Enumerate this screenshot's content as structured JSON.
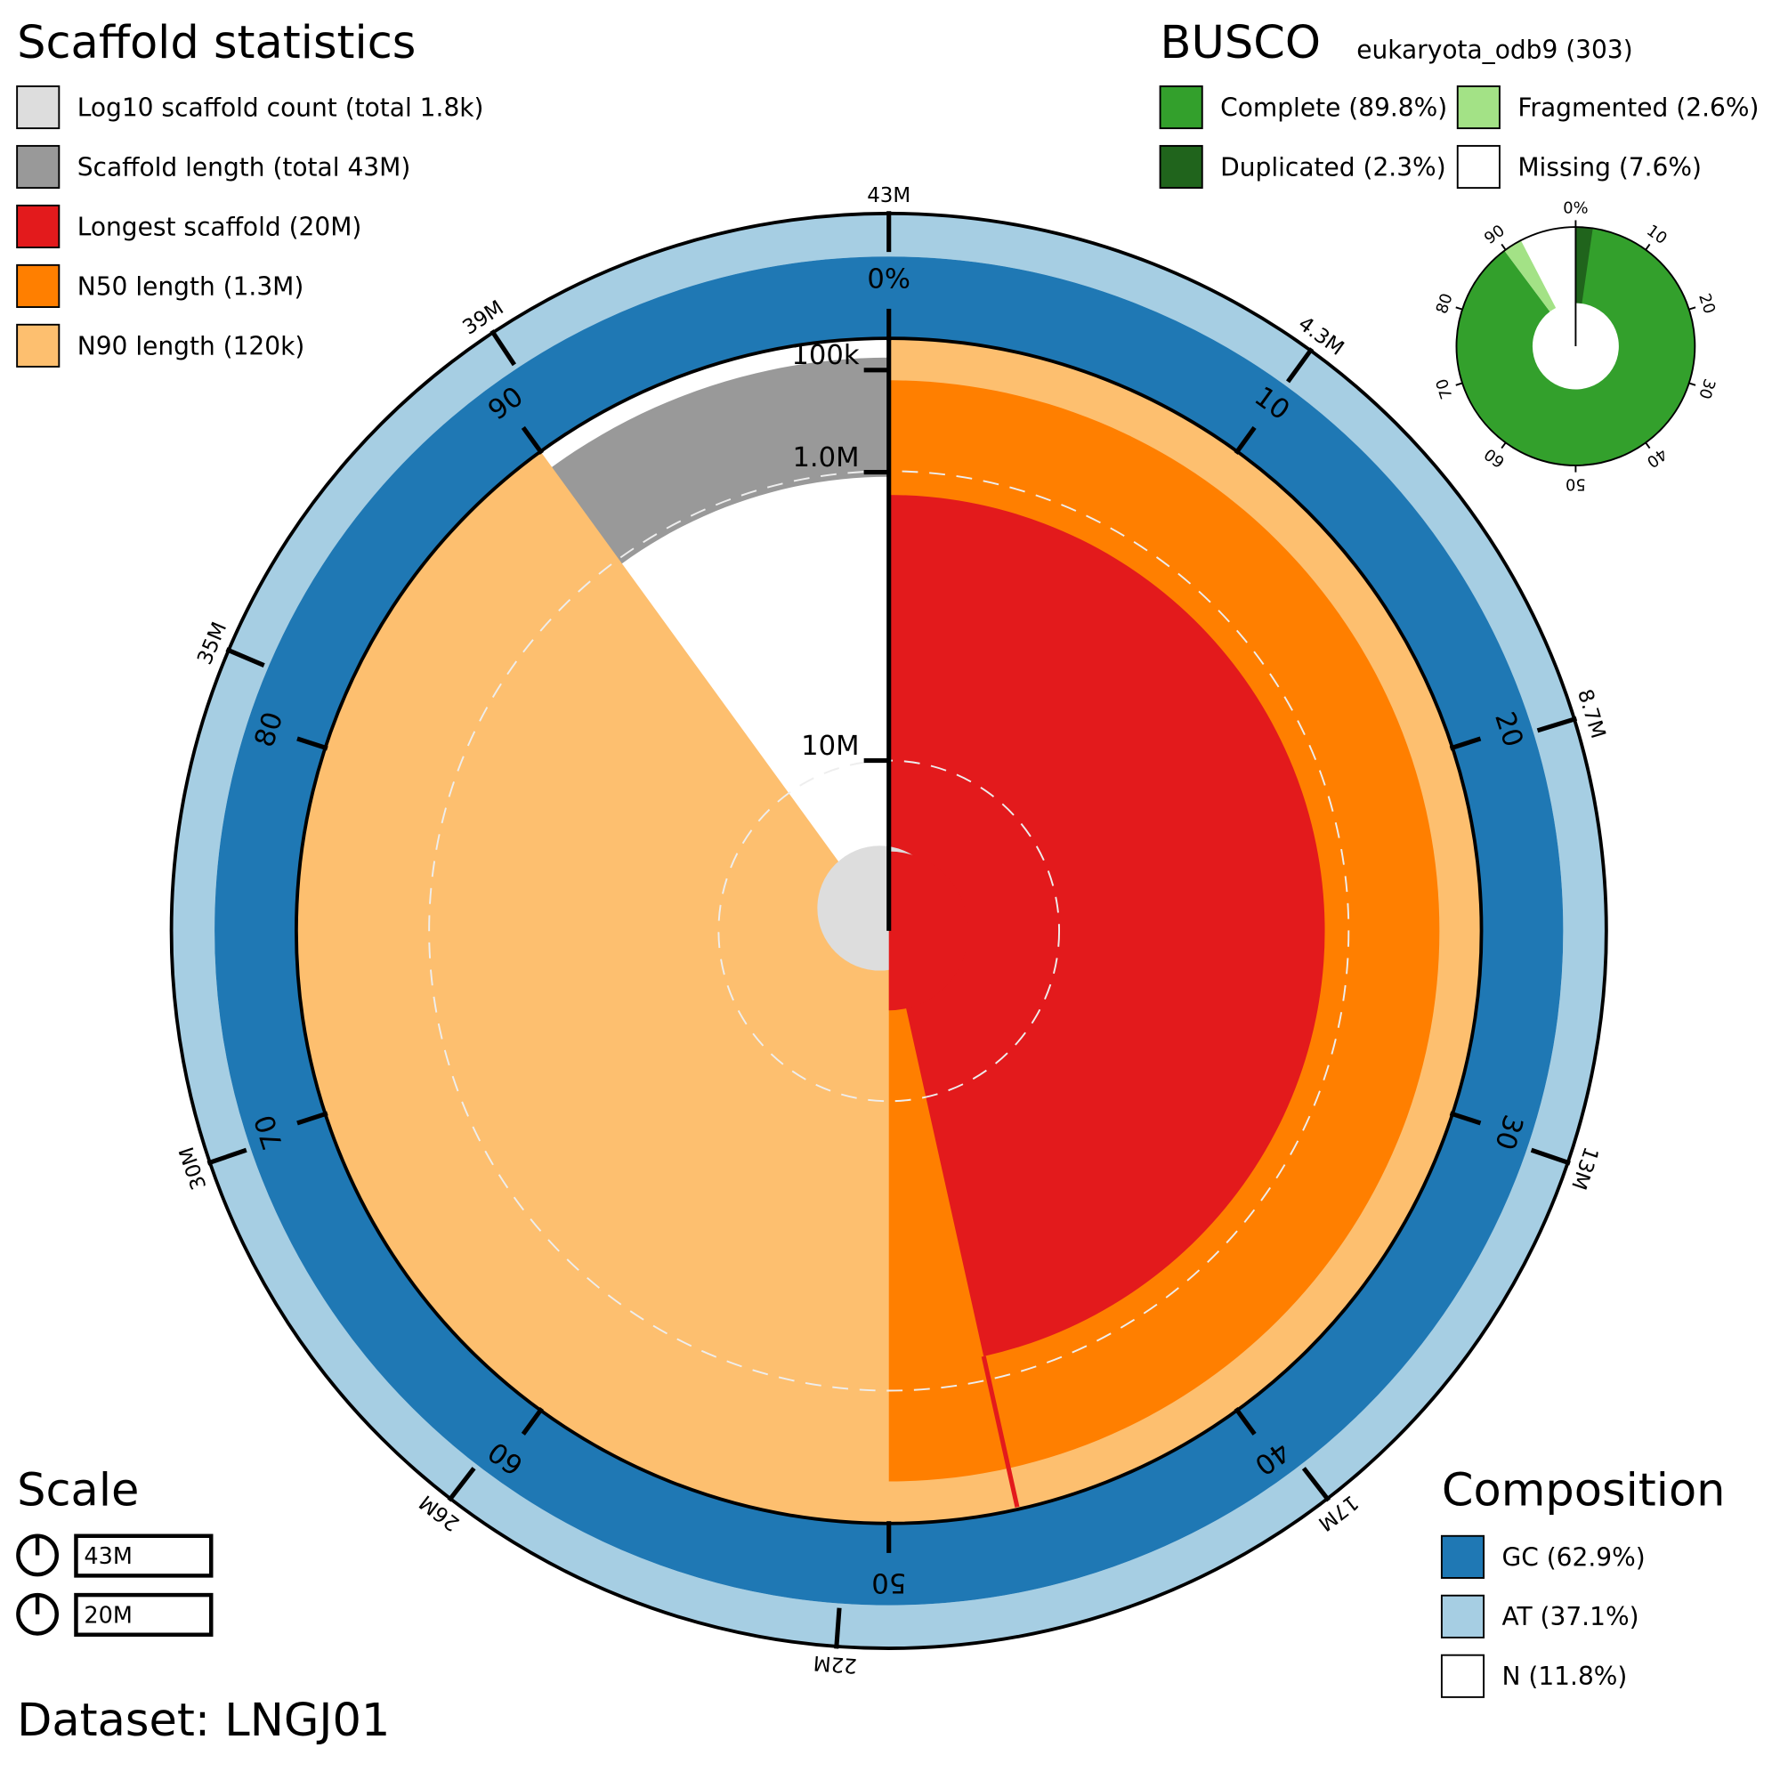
{
  "chart_data": {
    "type": "snail",
    "title": "Scaffold statistics",
    "legend": [
      {
        "label": "Log10 scaffold count (total 1.8k)",
        "color": "#dddddd"
      },
      {
        "label": "Scaffold length (total 43M)",
        "color": "#999999"
      },
      {
        "label": "Longest scaffold (20M)",
        "color": "#e31a1c"
      },
      {
        "label": "N50 length (1.3M)",
        "color": "#ff7f00"
      },
      {
        "label": "N90 length (120k)",
        "color": "#fdbf6f"
      }
    ],
    "total_length": 43000000,
    "longest_scaffold": 20000000,
    "length_ticks": [
      {
        "value": 4300000,
        "label": "4.3M"
      },
      {
        "value": 8700000,
        "label": "8.7M"
      },
      {
        "value": 13000000,
        "label": "13M"
      },
      {
        "value": 17000000,
        "label": "17M"
      },
      {
        "value": 22000000,
        "label": "22M"
      },
      {
        "value": 26000000,
        "label": "26M"
      },
      {
        "value": 30000000,
        "label": "30M"
      },
      {
        "value": 35000000,
        "label": "35M"
      },
      {
        "value": 39000000,
        "label": "39M"
      },
      {
        "value": 43000000,
        "label": "43M"
      }
    ],
    "percent_ticks": [
      {
        "value": 0,
        "label": "0%"
      },
      10,
      20,
      30,
      40,
      50,
      60,
      70,
      80,
      90
    ],
    "radius_ticks": [
      {
        "value": 100000,
        "label": "100k"
      },
      {
        "value": 1000000,
        "label": "1.0M"
      },
      {
        "value": 10000000,
        "label": "10M"
      }
    ],
    "busco": {
      "title": "BUSCO",
      "lineage": "eukaryota_odb9 (303)",
      "categories": [
        {
          "label": "Complete (89.8%)",
          "value": 89.8,
          "color": "#33a02c"
        },
        {
          "label": "Duplicated (2.3%)",
          "value": 2.3,
          "color": "#20641c"
        },
        {
          "label": "Fragmented (2.6%)",
          "value": 2.6,
          "color": "#a3e286"
        },
        {
          "label": "Missing (7.6%)",
          "value": 7.6,
          "color": "#ffffff"
        }
      ],
      "ticks": [
        {
          "value": 0,
          "label": "0%"
        },
        10,
        20,
        30,
        40,
        50,
        60,
        70,
        80,
        90
      ]
    },
    "composition": {
      "title": "Composition",
      "items": [
        {
          "label": "GC (62.9%)",
          "color": "#1f78b4"
        },
        {
          "label": "AT (37.1%)",
          "color": "#a6cee3"
        },
        {
          "label": "N (11.8%)",
          "color": "#ffffff"
        }
      ]
    },
    "scale": {
      "title": "Scale",
      "items": [
        "43M",
        "20M"
      ]
    },
    "dataset": "Dataset: LNGJ01"
  }
}
